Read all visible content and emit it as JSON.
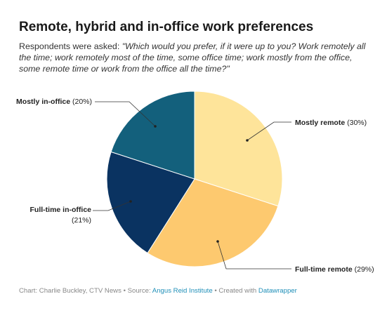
{
  "chart_data": {
    "type": "pie",
    "title": "Remote, hybrid and in-office work preferences",
    "subtitle_prefix": "Respondents were asked: ",
    "subtitle_question": "\"Which would you prefer, if it were up to you? Work remotely all the time; work remotely most of the time, some office time; work mostly from the office, some remote time or work from the office all the time?\"",
    "slices": [
      {
        "name": "Mostly remote",
        "pct_label": "(30%)",
        "value": 30,
        "color": "#fee49a"
      },
      {
        "name": "Full-time remote",
        "pct_label": "(29%)",
        "value": 29,
        "color": "#fdc96f"
      },
      {
        "name": "Full-time in-office",
        "pct_label": "(21%)",
        "value": 21,
        "color": "#0a3361"
      },
      {
        "name": "Mostly in-office",
        "pct_label": "(20%)",
        "value": 20,
        "color": "#13607c"
      }
    ]
  },
  "footer": {
    "prefix": "Chart: Charlie Buckley, CTV News • Source: ",
    "source": "Angus Reid Institute",
    "middle": " • Created with ",
    "tool": "Datawrapper"
  }
}
